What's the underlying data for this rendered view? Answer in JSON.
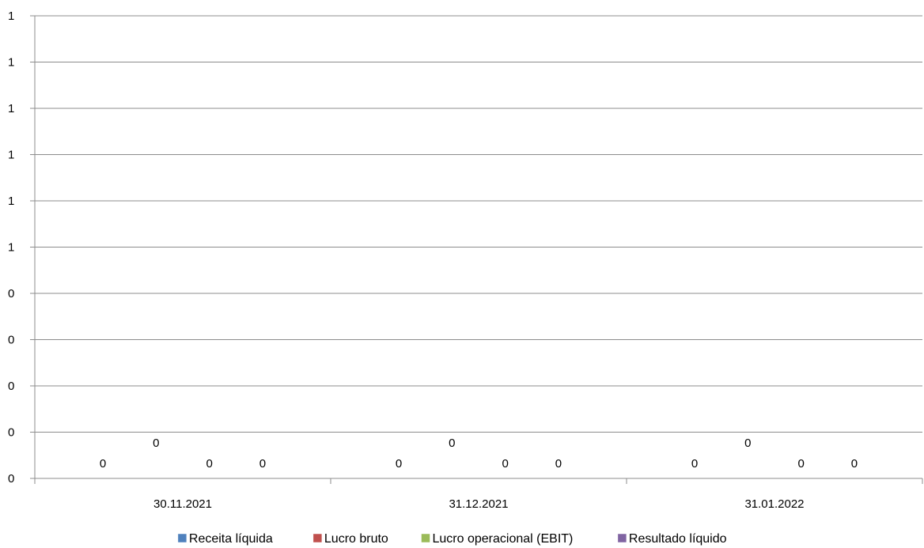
{
  "chart_data": {
    "type": "bar",
    "categories": [
      "30.11.2021",
      "31.12.2021",
      "31.01.2022"
    ],
    "y_tick_labels": [
      "0",
      "0",
      "0",
      "0",
      "0",
      "1",
      "1",
      "1",
      "1",
      "1",
      "1"
    ],
    "ylim": [
      0,
      1
    ],
    "grid": true,
    "legend_position": "bottom",
    "series": [
      {
        "name": "Receita líquida",
        "color": "#4F81BD",
        "values": [
          0,
          0,
          0
        ],
        "data_labels": [
          "0",
          "0",
          "0"
        ]
      },
      {
        "name": "Lucro bruto",
        "color": "#C0504D",
        "values": [
          0,
          0,
          0
        ],
        "data_labels": [
          "0",
          "0",
          "0"
        ]
      },
      {
        "name": "Lucro operacional (EBIT)",
        "color": "#9BBB59",
        "values": [
          0,
          0,
          0
        ],
        "data_labels": [
          "0",
          "0",
          "0"
        ]
      },
      {
        "name": "Resultado líquido",
        "color": "#8064A2",
        "values": [
          0,
          0,
          0
        ],
        "data_labels": [
          "0",
          "0",
          "0"
        ]
      }
    ]
  }
}
